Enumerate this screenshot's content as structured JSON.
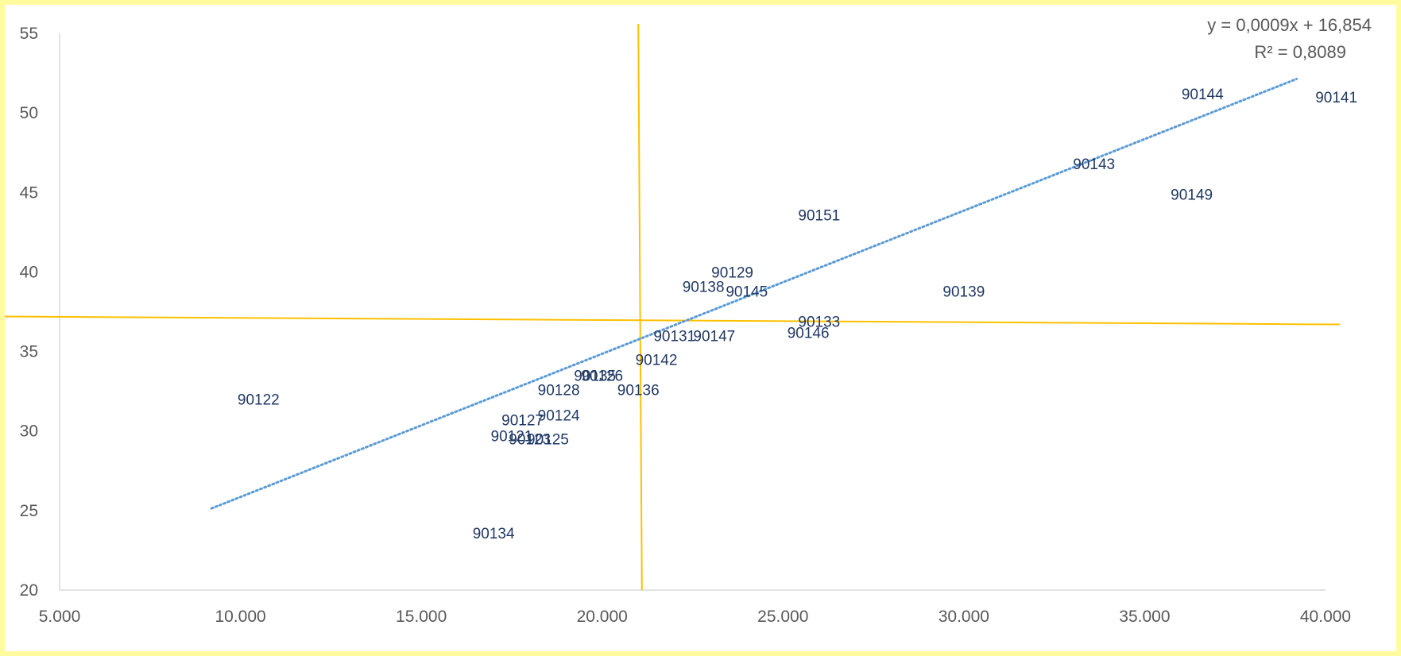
{
  "chart_data": {
    "type": "scatter",
    "title": "",
    "xlabel": "",
    "ylabel": "",
    "xlim": [
      5000,
      40000
    ],
    "ylim": [
      20,
      55
    ],
    "x_ticks": [
      5000,
      10000,
      15000,
      20000,
      25000,
      30000,
      35000,
      40000
    ],
    "x_tick_labels": [
      "5.000",
      "10.000",
      "15.000",
      "20.000",
      "25.000",
      "30.000",
      "35.000",
      "40.000"
    ],
    "y_ticks": [
      20,
      25,
      30,
      35,
      40,
      45,
      50,
      55
    ],
    "y_tick_labels": [
      "20",
      "25",
      "30",
      "35",
      "40",
      "45",
      "50",
      "55"
    ],
    "grid": false,
    "points": [
      {
        "label": "90122",
        "x": 10500,
        "y": 32.0
      },
      {
        "label": "90134",
        "x": 17000,
        "y": 23.6
      },
      {
        "label": "90121",
        "x": 17500,
        "y": 29.7
      },
      {
        "label": "90123",
        "x": 18000,
        "y": 29.5
      },
      {
        "label": "90125",
        "x": 18500,
        "y": 29.5
      },
      {
        "label": "90127",
        "x": 17800,
        "y": 30.7
      },
      {
        "label": "90124",
        "x": 18800,
        "y": 31.0
      },
      {
        "label": "90128",
        "x": 18800,
        "y": 32.6
      },
      {
        "label": "90135",
        "x": 19800,
        "y": 33.5
      },
      {
        "label": "90126",
        "x": 20000,
        "y": 33.5
      },
      {
        "label": "90136",
        "x": 21000,
        "y": 32.6
      },
      {
        "label": "90142",
        "x": 21500,
        "y": 34.5
      },
      {
        "label": "90131",
        "x": 22000,
        "y": 36.0
      },
      {
        "label": "90147",
        "x": 23100,
        "y": 36.0
      },
      {
        "label": "90138",
        "x": 22800,
        "y": 39.1
      },
      {
        "label": "90129",
        "x": 23600,
        "y": 40.0
      },
      {
        "label": "90145",
        "x": 24000,
        "y": 38.8
      },
      {
        "label": "90133",
        "x": 26000,
        "y": 36.9
      },
      {
        "label": "90146",
        "x": 25700,
        "y": 36.2
      },
      {
        "label": "90151",
        "x": 26000,
        "y": 43.6
      },
      {
        "label": "90139",
        "x": 30000,
        "y": 38.8
      },
      {
        "label": "90143",
        "x": 33600,
        "y": 46.8
      },
      {
        "label": "90144",
        "x": 36600,
        "y": 51.2
      },
      {
        "label": "90149",
        "x": 36300,
        "y": 44.9
      },
      {
        "label": "90141",
        "x": 40300,
        "y": 51.0
      }
    ],
    "trendline": {
      "type": "linear",
      "slope": 0.0009,
      "intercept": 16.854,
      "x_range": [
        9200,
        39200
      ],
      "equation_label": "y = 0,0009x + 16,854",
      "r2_label": "R² = 0,8089",
      "color": "#5b9bd5"
    },
    "reference_lines": {
      "color": "#ffc000",
      "horizontal": {
        "x_from": 4000,
        "y_from": 37.2,
        "x_to": 40400,
        "y_to": 36.7
      },
      "vertical": {
        "x_from": 21000,
        "y_from": 55.6,
        "x_to": 21100,
        "y_to": 20.0
      }
    },
    "colors": {
      "background": "#ffffff",
      "frame": "#fffb9e",
      "label_text": "#203864",
      "axis_text": "#595959",
      "axis_line": "#d9d9d9"
    }
  }
}
